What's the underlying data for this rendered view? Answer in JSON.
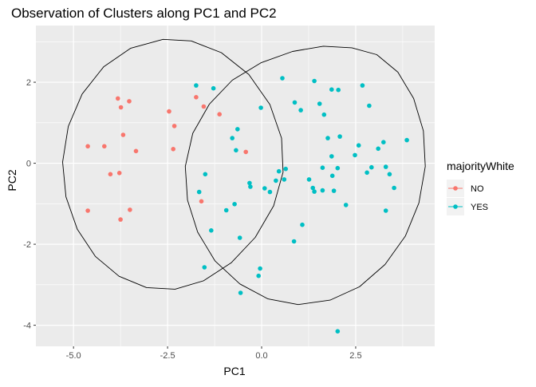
{
  "chart_data": {
    "type": "scatter",
    "title": "Observation of Clusters along PC1 and PC2",
    "xlabel": "PC1",
    "ylabel": "PC2",
    "xlim": [
      -6.0,
      4.6
    ],
    "ylim": [
      -4.52,
      3.4
    ],
    "xticks": [
      -5.0,
      -2.5,
      0.0,
      2.5
    ],
    "xtick_labels": [
      "-5.0",
      "-2.5",
      "0.0",
      "2.5"
    ],
    "yticks": [
      -4,
      -2,
      0,
      2
    ],
    "ytick_labels": [
      "-4",
      "-2",
      "0",
      "2"
    ],
    "grid": true,
    "legend": {
      "title": "majorityWhite",
      "position": "right"
    },
    "colors": {
      "NO": "#F8766D",
      "YES": "#00BFC4",
      "panel": "#EBEBEB",
      "grid": "#FFFFFF",
      "ellipse": "#000000"
    },
    "series": [
      {
        "name": "NO",
        "color": "#F8766D",
        "points": [
          [
            -4.62,
            0.42
          ],
          [
            -4.62,
            -1.17
          ],
          [
            -4.18,
            0.42
          ],
          [
            -4.02,
            -0.27
          ],
          [
            -3.82,
            1.6
          ],
          [
            -3.78,
            -0.24
          ],
          [
            -3.74,
            1.38
          ],
          [
            -3.68,
            0.7
          ],
          [
            -3.52,
            1.53
          ],
          [
            -3.34,
            0.3
          ],
          [
            -3.75,
            -1.39
          ],
          [
            -3.5,
            -1.15
          ],
          [
            -2.46,
            1.28
          ],
          [
            -2.32,
            0.92
          ],
          [
            -2.35,
            0.35
          ],
          [
            -1.74,
            1.63
          ],
          [
            -1.54,
            1.4
          ],
          [
            -1.12,
            1.21
          ],
          [
            -1.6,
            -0.94
          ],
          [
            -0.42,
            0.28
          ]
        ]
      },
      {
        "name": "YES",
        "color": "#00BFC4",
        "points": [
          [
            -1.74,
            1.92
          ],
          [
            -1.28,
            1.85
          ],
          [
            -0.78,
            0.62
          ],
          [
            -0.64,
            0.84
          ],
          [
            -0.68,
            0.32
          ],
          [
            -0.02,
            1.37
          ],
          [
            -1.66,
            -0.71
          ],
          [
            -1.5,
            -0.27
          ],
          [
            -0.94,
            -1.16
          ],
          [
            -0.72,
            -1.01
          ],
          [
            -0.3,
            -0.58
          ],
          [
            0.08,
            -0.62
          ],
          [
            0.22,
            -0.71
          ],
          [
            0.38,
            -0.43
          ],
          [
            0.46,
            -0.2
          ],
          [
            0.64,
            -0.14
          ],
          [
            -1.34,
            -1.66
          ],
          [
            -0.58,
            -1.84
          ],
          [
            -0.32,
            -0.49
          ],
          [
            -0.04,
            -2.6
          ],
          [
            -0.08,
            -2.78
          ],
          [
            -1.52,
            -2.57
          ],
          [
            -0.56,
            -3.2
          ],
          [
            0.55,
            2.1
          ],
          [
            0.6,
            -0.4
          ],
          [
            0.88,
            1.5
          ],
          [
            1.04,
            1.31
          ],
          [
            1.08,
            -1.52
          ],
          [
            0.86,
            -1.93
          ],
          [
            1.26,
            -0.4
          ],
          [
            1.4,
            2.03
          ],
          [
            1.54,
            1.47
          ],
          [
            1.66,
            1.2
          ],
          [
            1.62,
            -0.11
          ],
          [
            1.76,
            0.62
          ],
          [
            1.86,
            1.82
          ],
          [
            1.88,
            -0.31
          ],
          [
            1.86,
            0.17
          ],
          [
            2.02,
            -0.12
          ],
          [
            2.04,
            1.81
          ],
          [
            2.08,
            0.66
          ],
          [
            2.24,
            -1.03
          ],
          [
            2.48,
            0.2
          ],
          [
            2.58,
            0.44
          ],
          [
            2.68,
            1.92
          ],
          [
            2.8,
            -0.23
          ],
          [
            2.92,
            -0.1
          ],
          [
            2.86,
            1.42
          ],
          [
            3.1,
            0.36
          ],
          [
            3.24,
            0.52
          ],
          [
            3.3,
            -0.09
          ],
          [
            3.4,
            -0.27
          ],
          [
            3.52,
            -0.61
          ],
          [
            3.3,
            -1.17
          ],
          [
            3.86,
            0.57
          ],
          [
            1.62,
            -0.67
          ],
          [
            1.92,
            -0.68
          ],
          [
            1.4,
            -0.7
          ],
          [
            1.36,
            -0.61
          ],
          [
            2.02,
            -4.15
          ]
        ]
      }
    ],
    "ellipses": [
      {
        "group": "NO",
        "points": [
          [
            -2.62,
            3.06
          ],
          [
            -1.87,
            3.02
          ],
          [
            -1.07,
            2.73
          ],
          [
            -0.34,
            2.19
          ],
          [
            0.22,
            1.45
          ],
          [
            0.53,
            0.62
          ],
          [
            0.57,
            -0.22
          ],
          [
            0.32,
            -1.05
          ],
          [
            -0.17,
            -1.83
          ],
          [
            -0.81,
            -2.46
          ],
          [
            -1.54,
            -2.9
          ],
          [
            -2.3,
            -3.11
          ],
          [
            -3.06,
            -3.07
          ],
          [
            -3.79,
            -2.79
          ],
          [
            -4.42,
            -2.3
          ],
          [
            -4.9,
            -1.63
          ],
          [
            -5.2,
            -0.83
          ],
          [
            -5.29,
            0.03
          ],
          [
            -5.14,
            0.91
          ],
          [
            -4.77,
            1.71
          ],
          [
            -4.2,
            2.38
          ],
          [
            -3.48,
            2.84
          ],
          [
            -2.62,
            3.06
          ]
        ]
      },
      {
        "group": "YES",
        "points": [
          [
            2.4,
            2.85
          ],
          [
            3.06,
            2.68
          ],
          [
            3.62,
            2.25
          ],
          [
            4.04,
            1.6
          ],
          [
            4.3,
            0.8
          ],
          [
            4.35,
            -0.08
          ],
          [
            4.18,
            -0.98
          ],
          [
            3.82,
            -1.8
          ],
          [
            3.28,
            -2.5
          ],
          [
            2.6,
            -3.05
          ],
          [
            1.82,
            -3.38
          ],
          [
            0.97,
            -3.49
          ],
          [
            0.17,
            -3.35
          ],
          [
            -0.58,
            -2.98
          ],
          [
            -1.24,
            -2.41
          ],
          [
            -1.7,
            -1.7
          ],
          [
            -1.97,
            -0.91
          ],
          [
            -2.03,
            -0.08
          ],
          [
            -1.83,
            0.74
          ],
          [
            -1.39,
            1.46
          ],
          [
            -0.78,
            2.05
          ],
          [
            -0.02,
            2.48
          ],
          [
            0.82,
            2.76
          ],
          [
            1.64,
            2.89
          ],
          [
            2.4,
            2.85
          ]
        ]
      }
    ]
  }
}
